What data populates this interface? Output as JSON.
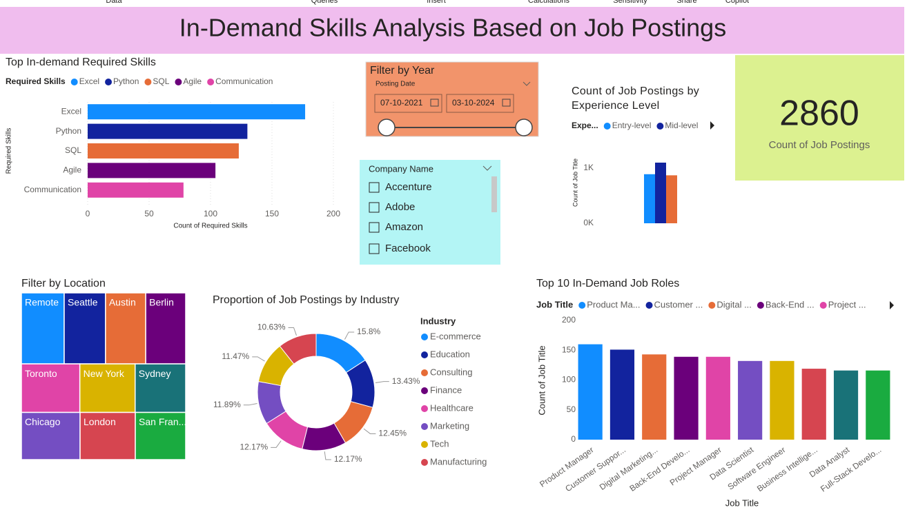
{
  "header": {
    "menu": [
      "Data",
      "Queries",
      "Insert",
      "Calculations",
      "Sensitivity",
      "Share",
      "Copilot"
    ],
    "title": "In-Demand Skills Analysis Based on Job Postings"
  },
  "chart_data": [
    {
      "type": "hbar",
      "title": "Top In-demand Required Skills",
      "legend_title": "Required Skills",
      "categories": [
        "Excel",
        "Python",
        "SQL",
        "Agile",
        "Communication"
      ],
      "values": [
        177,
        130,
        123,
        104,
        78
      ],
      "colors": [
        "#118DFF",
        "#12239E",
        "#E66C37",
        "#6B007B",
        "#E044A7"
      ],
      "xlim": [
        0,
        200
      ],
      "xticks": [
        0,
        50,
        100,
        150,
        200
      ],
      "xlabel": "Count of Required Skills",
      "ylabel": "Required Skills",
      "grid": true
    },
    {
      "type": "bar",
      "title": "Count of Job Postings by Experience Level",
      "legend_title": "Expe...",
      "categories": [
        "Entry-level",
        "Mid-level",
        null
      ],
      "values": [
        890,
        1100,
        870
      ],
      "colors": [
        "#118DFF",
        "#12239E",
        "#E66C37"
      ],
      "ylim": [
        0,
        1300
      ],
      "yticks": [
        {
          "value": 0,
          "label": "0K"
        },
        {
          "value": 1000,
          "label": "1K"
        }
      ],
      "ylabel": "Count of Job Title"
    },
    {
      "type": "donut",
      "title": "Proportion of Job Postings by Industry",
      "legend_title": "Industry",
      "categories": [
        "E-commerce",
        "Education",
        "Consulting",
        "Finance",
        "Healthcare",
        "Marketing",
        "Tech",
        "Manufacturing"
      ],
      "values": [
        15.8,
        13.43,
        12.45,
        12.17,
        12.17,
        11.89,
        11.47,
        10.63
      ],
      "value_labels": [
        "15.8%",
        "13.43%",
        "12.45%",
        "12.17%",
        "12.17%",
        "11.89%",
        "11.47%",
        "10.63%"
      ],
      "colors": [
        "#118DFF",
        "#12239E",
        "#E66C37",
        "#6B007B",
        "#E044A7",
        "#744EC2",
        "#D9B300",
        "#D64550"
      ]
    },
    {
      "type": "treemap",
      "title": "Filter by Location",
      "categories": [
        "Remote",
        "Seattle",
        "Austin",
        "Berlin",
        "Toronto",
        "Chicago",
        "New York",
        "London",
        "Sydney",
        "San Fran..."
      ],
      "values": [
        317,
        306,
        298,
        296,
        296,
        289,
        280,
        272,
        256,
        248
      ],
      "colors": [
        "#118DFF",
        "#12239E",
        "#E66C37",
        "#6B007B",
        "#E044A7",
        "#744EC2",
        "#D9B300",
        "#D64550",
        "#197278",
        "#1AAB40"
      ]
    },
    {
      "type": "bar",
      "title": "Top 10 In-Demand Job Roles",
      "legend_title": "Job Title",
      "categories": [
        "Product Manager",
        "Customer Suppor...",
        "Digital Marketing...",
        "Back-End Develo...",
        "Project Manager",
        "Data Scientist",
        "Software Engineer",
        "Business Intellige...",
        "Data Analyst",
        "Full-Stack Develo..."
      ],
      "legend_labels": [
        "Product Ma...",
        "Customer ...",
        "Digital ...",
        "Back-End ...",
        "Project ..."
      ],
      "values": [
        160,
        151,
        143,
        139,
        139,
        132,
        132,
        119,
        116,
        116
      ],
      "colors": [
        "#118DFF",
        "#12239E",
        "#E66C37",
        "#6B007B",
        "#E044A7",
        "#744EC2",
        "#D9B300",
        "#D64550",
        "#197278",
        "#1AAB40"
      ],
      "ylim": [
        0,
        200
      ],
      "yticks": [
        0,
        50,
        100,
        150,
        200
      ],
      "xlabel": "Job Title",
      "ylabel": "Count of Job Title"
    }
  ],
  "year_filter": {
    "title": "Filter by Year",
    "field": "Posting Date",
    "start": "07-10-2021",
    "end": "03-10-2024"
  },
  "company_filter": {
    "title": "Company Name",
    "items": [
      "Accenture",
      "Adobe",
      "Amazon",
      "Facebook"
    ]
  },
  "kpi": {
    "value": 2860,
    "label": "Count of Job Postings"
  }
}
